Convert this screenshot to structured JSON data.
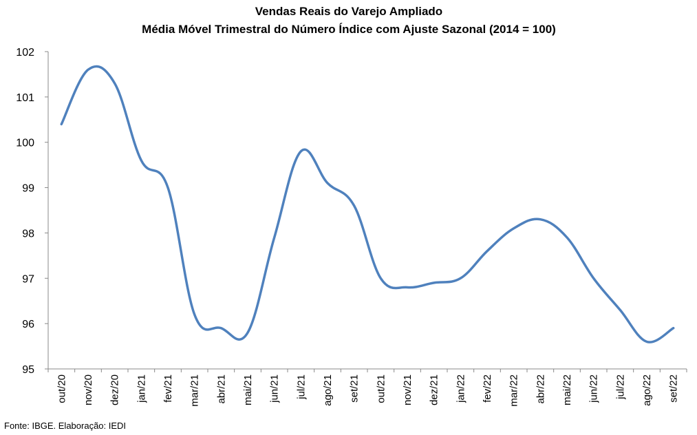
{
  "chart_data": {
    "type": "line",
    "title": "Vendas Reais do Varejo Ampliado",
    "subtitle": "Média Móvel Trimestral do Número Índice com Ajuste Sazonal (2014 = 100)",
    "xlabel": "",
    "ylabel": "",
    "ylim": [
      95,
      102
    ],
    "yticks": [
      95,
      96,
      97,
      98,
      99,
      100,
      101,
      102
    ],
    "grid": false,
    "legend": "none",
    "categories": [
      "out/20",
      "nov/20",
      "dez/20",
      "jan/21",
      "fev/21",
      "mar/21",
      "abr/21",
      "mai/21",
      "jun/21",
      "jul/21",
      "ago/21",
      "set/21",
      "out/21",
      "nov/21",
      "dez/21",
      "jan/22",
      "fev/22",
      "mar/22",
      "abr/22",
      "mai/22",
      "jun/22",
      "jul/22",
      "ago/22",
      "set/22"
    ],
    "series": [
      {
        "color": "#4F81BD",
        "values": [
          100.4,
          101.6,
          101.3,
          99.6,
          99.0,
          96.2,
          95.9,
          95.8,
          97.9,
          99.8,
          99.1,
          98.6,
          97.0,
          96.8,
          96.9,
          97.0,
          97.6,
          98.1,
          98.3,
          97.9,
          97.0,
          96.3,
          95.6,
          95.9
        ]
      }
    ]
  },
  "source": "Fonte: IBGE. Elaboração: IEDI"
}
